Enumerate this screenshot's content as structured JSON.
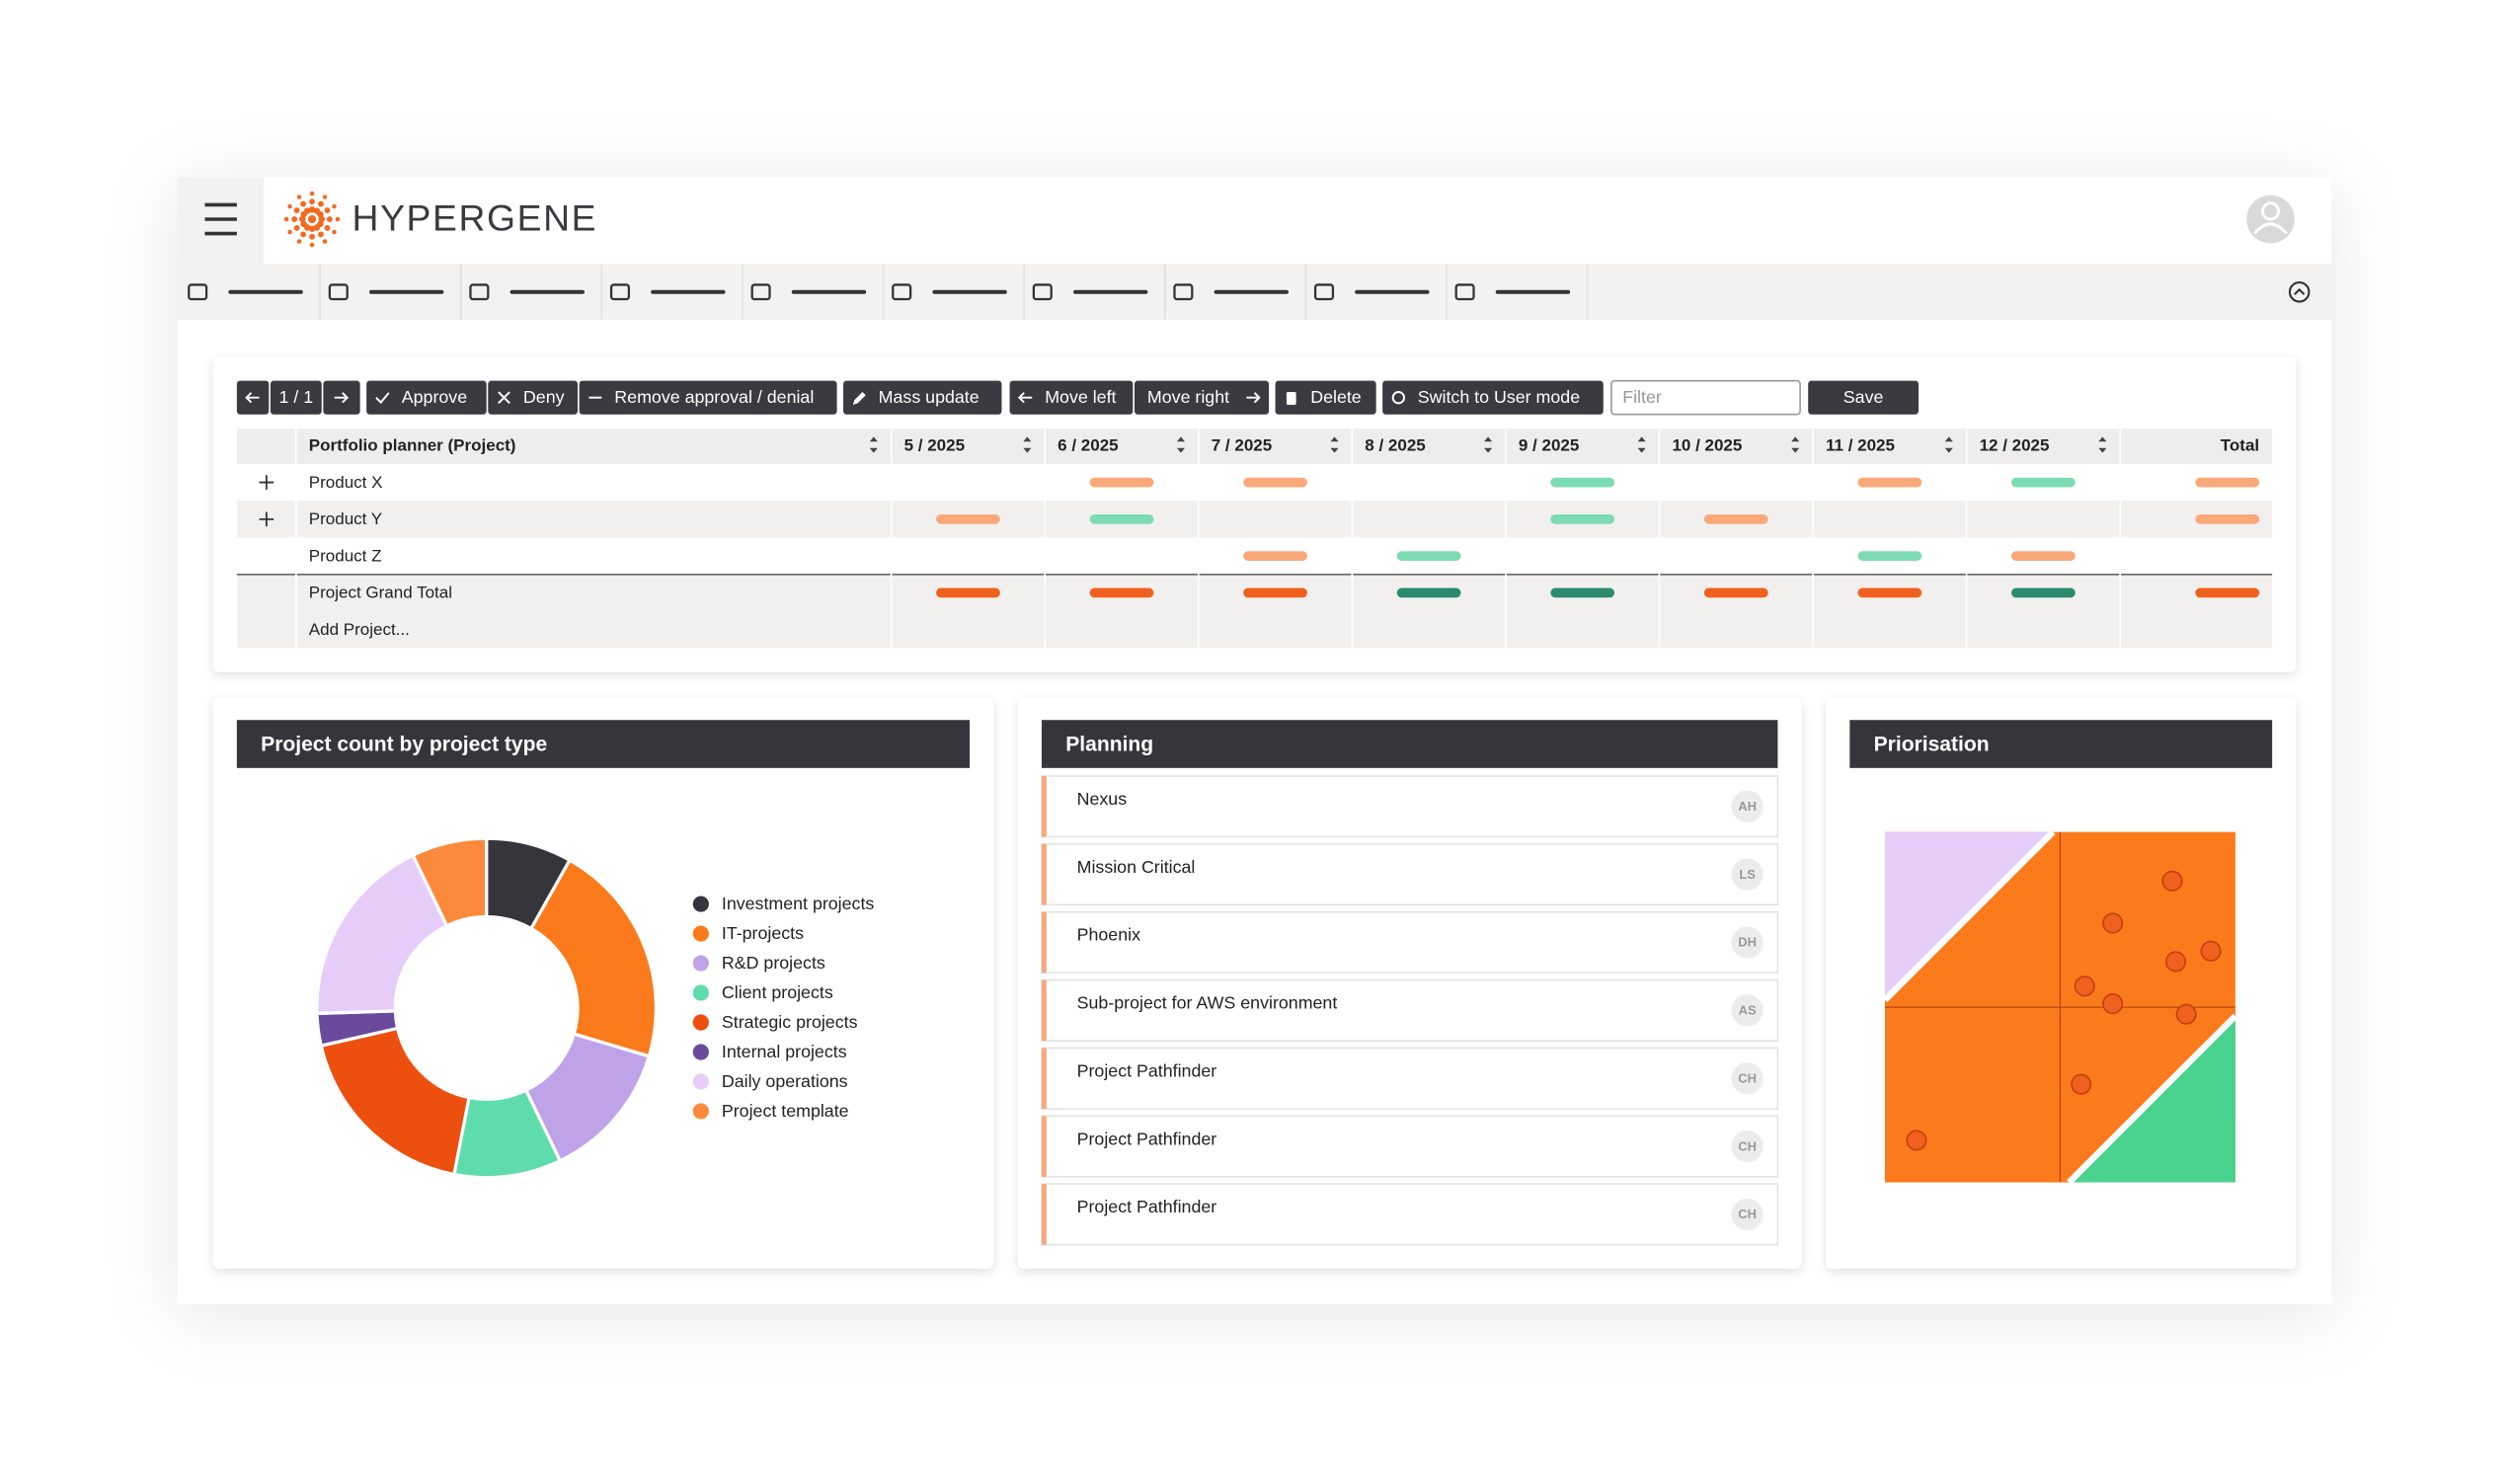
{
  "header": {
    "logo": "HYPERGENE"
  },
  "toolbar": {
    "pager": "1 / 1",
    "buttons": [
      "Approve",
      "Deny",
      "Remove approval / denial",
      "Mass update",
      "Move left",
      "Move right",
      "Delete",
      "Switch to User mode"
    ],
    "filter_placeholder": "Filter",
    "save": "Save"
  },
  "table": {
    "columns": [
      "Portfolio planner (Project)",
      "5 / 2025",
      "6 / 2025",
      "7 / 2025",
      "8 / 2025",
      "9 / 2025",
      "10 / 2025",
      "11 / 2025",
      "12 / 2025",
      "Total"
    ],
    "rows": [
      {
        "label": "Product X",
        "expandable": true,
        "cells": [
          null,
          "#f9a87a",
          "#f9a87a",
          null,
          "#7ddbb2",
          null,
          "#f9a87a",
          "#7ddbb2",
          "#f9a87a"
        ]
      },
      {
        "label": "Product Y",
        "expandable": true,
        "cells": [
          "#f9a87a",
          "#7ddbb2",
          null,
          null,
          "#7ddbb2",
          "#f9a87a",
          null,
          null,
          "#f9a87a"
        ]
      },
      {
        "label": "Product Z",
        "expandable": false,
        "cells": [
          null,
          null,
          "#f9a87a",
          "#7ddbb2",
          null,
          null,
          "#7ddbb2",
          "#f9a87a",
          null
        ]
      },
      {
        "label": "Project Grand Total",
        "expandable": false,
        "total": true,
        "cells": [
          "#f0601e",
          "#f0601e",
          "#f0601e",
          "#2b8a6e",
          "#2b8a6e",
          "#f0601e",
          "#f0601e",
          "#2b8a6e",
          "#f0601e"
        ]
      }
    ],
    "add_row": "Add Project..."
  },
  "donut": {
    "title": "Project count by project type",
    "series": [
      {
        "name": "Investment projects",
        "color": "#36353b",
        "value": 8
      },
      {
        "name": "IT-projects",
        "color": "#fb7a1c",
        "value": 21
      },
      {
        "name": "R&D projects",
        "color": "#bfa3e8",
        "value": 13
      },
      {
        "name": "Client projects",
        "color": "#5fdcac",
        "value": 10
      },
      {
        "name": "Strategic projects",
        "color": "#ed4f0f",
        "value": 18
      },
      {
        "name": "Internal projects",
        "color": "#6a4a9c",
        "value": 3
      },
      {
        "name": "Daily operations",
        "color": "#e6cdf9",
        "value": 18
      },
      {
        "name": "Project template",
        "color": "#fb8a3c",
        "value": 7
      }
    ]
  },
  "planning": {
    "title": "Planning",
    "items": [
      {
        "name": "Nexus",
        "initials": "AH"
      },
      {
        "name": "Mission Critical",
        "initials": "LS"
      },
      {
        "name": "Phoenix",
        "initials": "DH"
      },
      {
        "name": "Sub-project for AWS environment",
        "initials": "AS"
      },
      {
        "name": "Project Pathfinder",
        "initials": "CH"
      },
      {
        "name": "Project Pathfinder",
        "initials": "CH"
      },
      {
        "name": "Project Pathfinder",
        "initials": "CH"
      }
    ]
  },
  "priorisation": {
    "title": "Priorisation",
    "points": [
      {
        "x": 82,
        "y": 86
      },
      {
        "x": 65,
        "y": 74
      },
      {
        "x": 83,
        "y": 63
      },
      {
        "x": 93,
        "y": 66
      },
      {
        "x": 57,
        "y": 56
      },
      {
        "x": 65,
        "y": 51
      },
      {
        "x": 86,
        "y": 48
      },
      {
        "x": 56,
        "y": 28
      },
      {
        "x": 9,
        "y": 12
      }
    ]
  }
}
